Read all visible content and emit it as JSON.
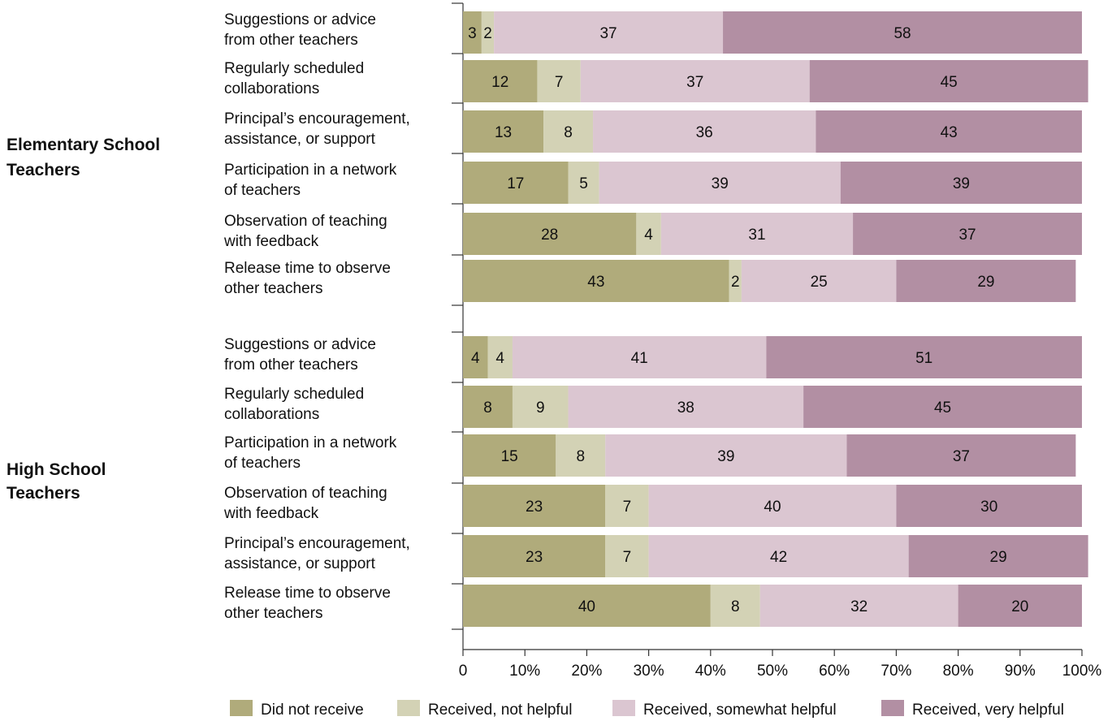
{
  "chart_data": {
    "type": "bar",
    "orientation": "horizontal",
    "stacked": true,
    "title": "",
    "xlabel": "",
    "ylabel": "",
    "xlim": [
      0,
      100
    ],
    "x_ticks": [
      "0",
      "10%",
      "20%",
      "30%",
      "40%",
      "50%",
      "60%",
      "70%",
      "80%",
      "90%",
      "100%"
    ],
    "grid": false,
    "legend_position": "bottom",
    "series": [
      {
        "name": "Did not receive",
        "color": "#b0ab7b"
      },
      {
        "name": "Received, not helpful",
        "color": "#d3d2b5"
      },
      {
        "name": "Received, somewhat helpful",
        "color": "#dbc6d1"
      },
      {
        "name": "Received, very helpful",
        "color": "#b28fa3"
      }
    ],
    "groups": [
      {
        "name": "Elementary School Teachers",
        "name_lines": [
          "Elementary School",
          "Teachers"
        ],
        "categories": [
          {
            "label": "Suggestions or advice from other teachers",
            "lines": [
              "Suggestions or advice",
              "from other teachers"
            ],
            "values": [
              3,
              2,
              37,
              58
            ]
          },
          {
            "label": "Regularly scheduled collaborations",
            "lines": [
              "Regularly scheduled",
              "collaborations"
            ],
            "values": [
              12,
              7,
              37,
              45
            ]
          },
          {
            "label": "Principal’s encouragement, assistance, or support",
            "lines": [
              "Principal’s encouragement,",
              "assistance, or support"
            ],
            "values": [
              13,
              8,
              36,
              43
            ]
          },
          {
            "label": "Participation in a network of teachers",
            "lines": [
              "Participation in a network",
              "of teachers"
            ],
            "values": [
              17,
              5,
              39,
              39
            ]
          },
          {
            "label": "Observation of teaching with feedback",
            "lines": [
              "Observation of teaching",
              "with feedback"
            ],
            "values": [
              28,
              4,
              31,
              37
            ]
          },
          {
            "label": "Release time to observe other teachers",
            "lines": [
              "Release time to observe",
              "other teachers"
            ],
            "values": [
              43,
              2,
              25,
              29
            ]
          }
        ]
      },
      {
        "name": "High School Teachers",
        "name_lines": [
          "High School",
          "Teachers"
        ],
        "categories": [
          {
            "label": "Suggestions or advice from other teachers",
            "lines": [
              "Suggestions or advice",
              "from other teachers"
            ],
            "values": [
              4,
              4,
              41,
              51
            ]
          },
          {
            "label": "Regularly scheduled collaborations",
            "lines": [
              "Regularly scheduled",
              "collaborations"
            ],
            "values": [
              8,
              9,
              38,
              45
            ]
          },
          {
            "label": "Participation in a network of teachers",
            "lines": [
              "Participation in a network",
              "of teachers"
            ],
            "values": [
              15,
              8,
              39,
              37
            ]
          },
          {
            "label": "Observation of teaching with feedback",
            "lines": [
              "Observation of teaching",
              "with feedback"
            ],
            "values": [
              23,
              7,
              40,
              30
            ]
          },
          {
            "label": "Principal’s encouragement, assistance, or support",
            "lines": [
              "Principal’s encouragement,",
              "assistance, or support"
            ],
            "values": [
              23,
              7,
              42,
              29
            ]
          },
          {
            "label": "Release time to observe other teachers",
            "lines": [
              "Release time to observe",
              "other teachers"
            ],
            "values": [
              40,
              8,
              32,
              20
            ]
          }
        ]
      }
    ]
  }
}
